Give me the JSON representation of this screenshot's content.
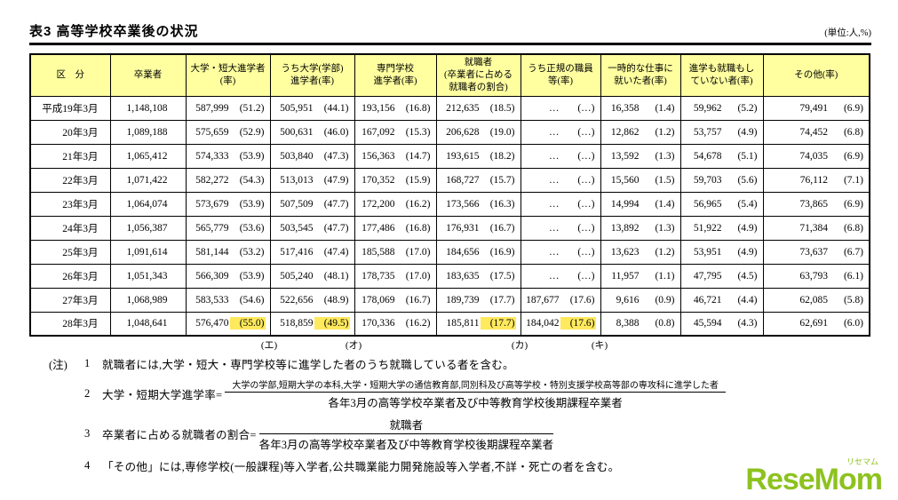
{
  "page": {
    "title": "表3 高等学校卒業後の状況",
    "unit_label": "(単位:人,%)"
  },
  "table": {
    "col_headers": [
      "区　分",
      "卒業者",
      "大学・短大進学者\n(率)",
      "うち大学(学部)\n進学者(率)",
      "専門学校\n進学者(率)",
      "就職者\n(卒業者に占める\n就職者の割合)",
      "うち正規の職員\n等(率)",
      "一時的な仕事に\n就いた者(率)",
      "進学も就職もし\nていない者(率)",
      "その他(率)"
    ],
    "rows": [
      {
        "label": "平成19年3月",
        "cells": [
          {
            "v": "1,148,108"
          },
          {
            "v": "587,999",
            "r": "(51.2)"
          },
          {
            "v": "505,951",
            "r": "(44.1)"
          },
          {
            "v": "193,156",
            "r": "(16.8)"
          },
          {
            "v": "212,635",
            "r": "(18.5)"
          },
          {
            "v": "…",
            "r": "(…)"
          },
          {
            "v": "16,358",
            "r": "(1.4)"
          },
          {
            "v": "59,962",
            "r": "(5.2)"
          },
          {
            "v": "79,491",
            "r": "(6.9)"
          }
        ]
      },
      {
        "label": "20年3月",
        "cells": [
          {
            "v": "1,089,188"
          },
          {
            "v": "575,659",
            "r": "(52.9)"
          },
          {
            "v": "500,631",
            "r": "(46.0)"
          },
          {
            "v": "167,092",
            "r": "(15.3)"
          },
          {
            "v": "206,628",
            "r": "(19.0)"
          },
          {
            "v": "…",
            "r": "(…)"
          },
          {
            "v": "12,862",
            "r": "(1.2)"
          },
          {
            "v": "53,757",
            "r": "(4.9)"
          },
          {
            "v": "74,452",
            "r": "(6.8)"
          }
        ]
      },
      {
        "label": "21年3月",
        "cells": [
          {
            "v": "1,065,412"
          },
          {
            "v": "574,333",
            "r": "(53.9)"
          },
          {
            "v": "503,840",
            "r": "(47.3)"
          },
          {
            "v": "156,363",
            "r": "(14.7)"
          },
          {
            "v": "193,615",
            "r": "(18.2)"
          },
          {
            "v": "…",
            "r": "(…)"
          },
          {
            "v": "13,592",
            "r": "(1.3)"
          },
          {
            "v": "54,678",
            "r": "(5.1)"
          },
          {
            "v": "74,035",
            "r": "(6.9)"
          }
        ]
      },
      {
        "label": "22年3月",
        "cells": [
          {
            "v": "1,071,422"
          },
          {
            "v": "582,272",
            "r": "(54.3)"
          },
          {
            "v": "513,013",
            "r": "(47.9)"
          },
          {
            "v": "170,352",
            "r": "(15.9)"
          },
          {
            "v": "168,727",
            "r": "(15.7)"
          },
          {
            "v": "…",
            "r": "(…)"
          },
          {
            "v": "15,560",
            "r": "(1.5)"
          },
          {
            "v": "59,703",
            "r": "(5.6)"
          },
          {
            "v": "76,112",
            "r": "(7.1)"
          }
        ]
      },
      {
        "label": "23年3月",
        "cells": [
          {
            "v": "1,064,074"
          },
          {
            "v": "573,679",
            "r": "(53.9)"
          },
          {
            "v": "507,509",
            "r": "(47.7)"
          },
          {
            "v": "172,200",
            "r": "(16.2)"
          },
          {
            "v": "173,566",
            "r": "(16.3)"
          },
          {
            "v": "…",
            "r": "(…)"
          },
          {
            "v": "14,994",
            "r": "(1.4)"
          },
          {
            "v": "56,965",
            "r": "(5.4)"
          },
          {
            "v": "73,865",
            "r": "(6.9)"
          }
        ]
      },
      {
        "label": "24年3月",
        "cells": [
          {
            "v": "1,056,387"
          },
          {
            "v": "565,779",
            "r": "(53.6)"
          },
          {
            "v": "503,545",
            "r": "(47.7)"
          },
          {
            "v": "177,486",
            "r": "(16.8)"
          },
          {
            "v": "176,931",
            "r": "(16.7)"
          },
          {
            "v": "…",
            "r": "(…)"
          },
          {
            "v": "13,892",
            "r": "(1.3)"
          },
          {
            "v": "51,922",
            "r": "(4.9)"
          },
          {
            "v": "71,384",
            "r": "(6.8)"
          }
        ]
      },
      {
        "label": "25年3月",
        "cells": [
          {
            "v": "1,091,614"
          },
          {
            "v": "581,144",
            "r": "(53.2)"
          },
          {
            "v": "517,416",
            "r": "(47.4)"
          },
          {
            "v": "185,588",
            "r": "(17.0)"
          },
          {
            "v": "184,656",
            "r": "(16.9)"
          },
          {
            "v": "…",
            "r": "(…)"
          },
          {
            "v": "13,623",
            "r": "(1.2)"
          },
          {
            "v": "53,951",
            "r": "(4.9)"
          },
          {
            "v": "73,637",
            "r": "(6.7)"
          }
        ]
      },
      {
        "label": "26年3月",
        "cells": [
          {
            "v": "1,051,343"
          },
          {
            "v": "566,309",
            "r": "(53.9)"
          },
          {
            "v": "505,240",
            "r": "(48.1)"
          },
          {
            "v": "178,735",
            "r": "(17.0)"
          },
          {
            "v": "183,635",
            "r": "(17.5)"
          },
          {
            "v": "…",
            "r": "(…)"
          },
          {
            "v": "11,957",
            "r": "(1.1)"
          },
          {
            "v": "47,795",
            "r": "(4.5)"
          },
          {
            "v": "63,793",
            "r": "(6.1)"
          }
        ]
      },
      {
        "label": "27年3月",
        "cells": [
          {
            "v": "1,068,989"
          },
          {
            "v": "583,533",
            "r": "(54.6)"
          },
          {
            "v": "522,656",
            "r": "(48.9)"
          },
          {
            "v": "178,069",
            "r": "(16.7)"
          },
          {
            "v": "189,739",
            "r": "(17.7)"
          },
          {
            "v": "187,677",
            "r": "(17.6)"
          },
          {
            "v": "9,616",
            "r": "(0.9)"
          },
          {
            "v": "46,721",
            "r": "(4.4)"
          },
          {
            "v": "62,085",
            "r": "(5.8)"
          }
        ]
      },
      {
        "label": "28年3月",
        "cells": [
          {
            "v": "1,048,641"
          },
          {
            "v": "576,470",
            "r": "(55.0)",
            "hl": true
          },
          {
            "v": "518,859",
            "r": "(49.5)",
            "hl": true
          },
          {
            "v": "170,336",
            "r": "(16.2)"
          },
          {
            "v": "185,811",
            "r": "(17.7)",
            "hl": true
          },
          {
            "v": "184,042",
            "r": "(17.6)",
            "hl": true
          },
          {
            "v": "8,388",
            "r": "(0.8)"
          },
          {
            "v": "45,594",
            "r": "(4.3)"
          },
          {
            "v": "62,691",
            "r": "(6.0)"
          }
        ]
      }
    ],
    "markers": [
      {
        "label": "(エ)",
        "col": 1
      },
      {
        "label": "(オ)",
        "col": 2
      },
      {
        "label": "(カ)",
        "col": 4
      },
      {
        "label": "(キ)",
        "col": 5
      }
    ]
  },
  "notes": {
    "prefix": "(注)",
    "items": [
      {
        "no": "1",
        "text": "就職者には,大学・短大・専門学校等に進学した者のうち就職している者を含む。"
      },
      {
        "no": "2",
        "lead": "大学・短期大学進学率=",
        "frac_num": "大学の学部,短期大学の本科,大学・短期大学の通信教育部,同別科及び高等学校・特別支援学校高等部の専攻科に進学した者",
        "frac_den": "各年3月の高等学校卒業者及び中等教育学校後期課程卒業者"
      },
      {
        "no": "3",
        "lead": "卒業者に占める就職者の割合=",
        "frac_num": "就職者",
        "frac_den": "各年3月の高等学校卒業者及び中等教育学校後期課程卒業者"
      },
      {
        "no": "4",
        "text": "「その他」には,専修学校(一般課程)等入学者,公共職業能力開発施設等入学者,不詳・死亡の者を含む。"
      }
    ]
  },
  "logo": {
    "text": "ReseMom",
    "ruby": "リセマム",
    "color": "#8dc21f"
  },
  "colors": {
    "header_bg": "#ffffa0",
    "highlight": "#ffe95c"
  }
}
